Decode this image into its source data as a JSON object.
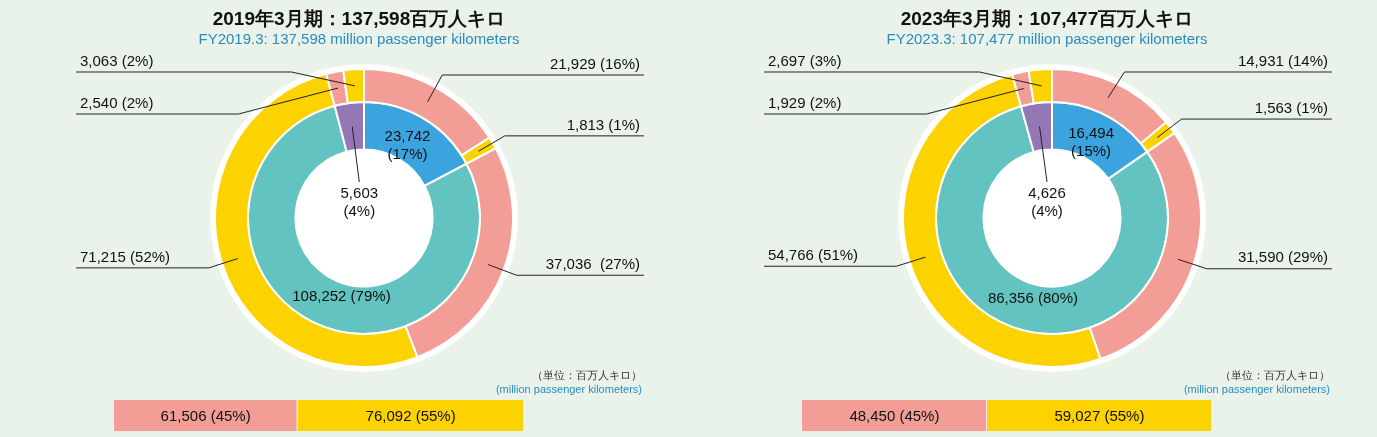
{
  "chart_data": [
    {
      "type": "donut",
      "title": "2019年3月期：137,598百万人キロ",
      "subtitle": "FY2019.3: 137,598 million passenger kilometers",
      "annotations": [
        "（単位：百万人キロ）",
        "(million passenger kilometers)"
      ],
      "series": [
        {
          "values": [
            21929,
            1813,
            37036,
            71215,
            2540,
            3063
          ],
          "colors": [
            "#f29e96",
            "#fcd200",
            "#f29e96",
            "#fcd200",
            "#f29e96",
            "#fcd200"
          ],
          "value_labels": [
            "21,929 (16%)",
            "1,813 (1%)",
            "37,036  (27%)",
            "71,215 (52%)",
            "2,540 (2%)",
            "3,063 (2%)"
          ]
        },
        {
          "values": [
            23742,
            108252,
            5603
          ],
          "colors": [
            "#3ba3dd",
            "#62c3c0",
            "#9478b5"
          ],
          "value_labels": [
            "23,742 (17%)",
            "108,252 (79%)",
            "5,603 (4%)"
          ]
        }
      ]
    },
    {
      "type": "bar",
      "orientation": "horizontal",
      "stacked": true,
      "categories": [
        null
      ],
      "series": [
        {
          "color": "#f29e96",
          "values": [
            61506
          ],
          "value_labels": [
            "61,506 (45%)"
          ]
        },
        {
          "color": "#fcd200",
          "values": [
            76092
          ],
          "value_labels": [
            "76,092 (55%)"
          ]
        }
      ]
    },
    {
      "type": "donut",
      "title": "2023年3月期：107,477百万人キロ",
      "subtitle": "FY2023.3: 107,477 million passenger kilometers",
      "annotations": [
        "（単位：百万人キロ）",
        "(million passenger kilometers)"
      ],
      "series": [
        {
          "values": [
            14931,
            1563,
            31590,
            54766,
            1929,
            2697
          ],
          "colors": [
            "#f29e96",
            "#fcd200",
            "#f29e96",
            "#fcd200",
            "#f29e96",
            "#fcd200"
          ],
          "value_labels": [
            "14,931 (14%)",
            "1,563 (1%)",
            "31,590 (29%)",
            "54,766 (51%)",
            "1,929 (2%)",
            "2,697 (3%)"
          ]
        },
        {
          "values": [
            16494,
            86356,
            4626
          ],
          "colors": [
            "#3ba3dd",
            "#62c3c0",
            "#9478b5"
          ],
          "value_labels": [
            "16,494 (15%)",
            "86,356 (80%)",
            "4,626 (4%)"
          ]
        }
      ]
    },
    {
      "type": "bar",
      "orientation": "horizontal",
      "stacked": true,
      "categories": [
        null
      ],
      "series": [
        {
          "color": "#f29e96",
          "values": [
            48450
          ],
          "value_labels": [
            "48,450 (45%)"
          ]
        },
        {
          "color": "#fcd200",
          "values": [
            59027
          ],
          "value_labels": [
            "59,027 (55%)"
          ]
        }
      ]
    }
  ]
}
